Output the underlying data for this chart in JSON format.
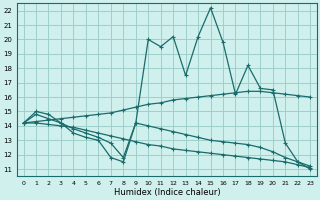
{
  "background_color": "#cff0ec",
  "grid_color": "#9ecfcb",
  "line_color": "#1a6b6b",
  "xlabel": "Humidex (Indice chaleur)",
  "xlim": [
    -0.5,
    23.5
  ],
  "ylim": [
    10.5,
    22.5
  ],
  "xticks": [
    0,
    1,
    2,
    3,
    4,
    5,
    6,
    7,
    8,
    9,
    10,
    11,
    12,
    13,
    14,
    15,
    16,
    17,
    18,
    19,
    20,
    21,
    22,
    23
  ],
  "yticks": [
    11,
    12,
    13,
    14,
    15,
    16,
    17,
    18,
    19,
    20,
    21,
    22
  ],
  "series": [
    {
      "x": [
        0,
        1,
        2,
        3,
        4,
        5,
        6,
        7,
        8,
        9,
        10,
        11,
        12,
        13,
        14,
        15,
        16,
        17,
        18,
        19,
        20,
        21,
        22,
        23
      ],
      "y": [
        14.2,
        15.0,
        14.8,
        14.2,
        13.5,
        13.2,
        13.0,
        11.8,
        11.5,
        14.2,
        20.0,
        19.5,
        20.2,
        17.5,
        20.2,
        22.2,
        19.8,
        16.2,
        18.2,
        16.6,
        16.5,
        12.8,
        11.5,
        11.0
      ]
    },
    {
      "x": [
        0,
        1,
        2,
        3,
        4,
        5,
        6,
        7,
        8,
        9,
        10,
        11,
        12,
        13,
        14,
        15,
        16,
        17,
        18,
        19,
        20,
        21,
        22,
        23
      ],
      "y": [
        14.2,
        14.3,
        14.4,
        14.5,
        14.6,
        14.7,
        14.8,
        14.9,
        15.1,
        15.3,
        15.5,
        15.6,
        15.8,
        15.9,
        16.0,
        16.1,
        16.2,
        16.3,
        16.4,
        16.4,
        16.3,
        16.2,
        16.1,
        16.0
      ]
    },
    {
      "x": [
        0,
        1,
        2,
        3,
        4,
        5,
        6,
        7,
        8,
        9,
        10,
        11,
        12,
        13,
        14,
        15,
        16,
        17,
        18,
        19,
        20,
        21,
        22,
        23
      ],
      "y": [
        14.2,
        14.8,
        14.5,
        14.2,
        13.8,
        13.5,
        13.2,
        12.8,
        11.8,
        14.2,
        14.0,
        13.8,
        13.6,
        13.4,
        13.2,
        13.0,
        12.9,
        12.8,
        12.7,
        12.5,
        12.2,
        11.8,
        11.5,
        11.2
      ]
    },
    {
      "x": [
        0,
        1,
        2,
        3,
        4,
        5,
        6,
        7,
        8,
        9,
        10,
        11,
        12,
        13,
        14,
        15,
        16,
        17,
        18,
        19,
        20,
        21,
        22,
        23
      ],
      "y": [
        14.2,
        14.2,
        14.1,
        14.0,
        13.9,
        13.7,
        13.5,
        13.3,
        13.1,
        12.9,
        12.7,
        12.6,
        12.4,
        12.3,
        12.2,
        12.1,
        12.0,
        11.9,
        11.8,
        11.7,
        11.6,
        11.5,
        11.3,
        11.1
      ]
    }
  ]
}
